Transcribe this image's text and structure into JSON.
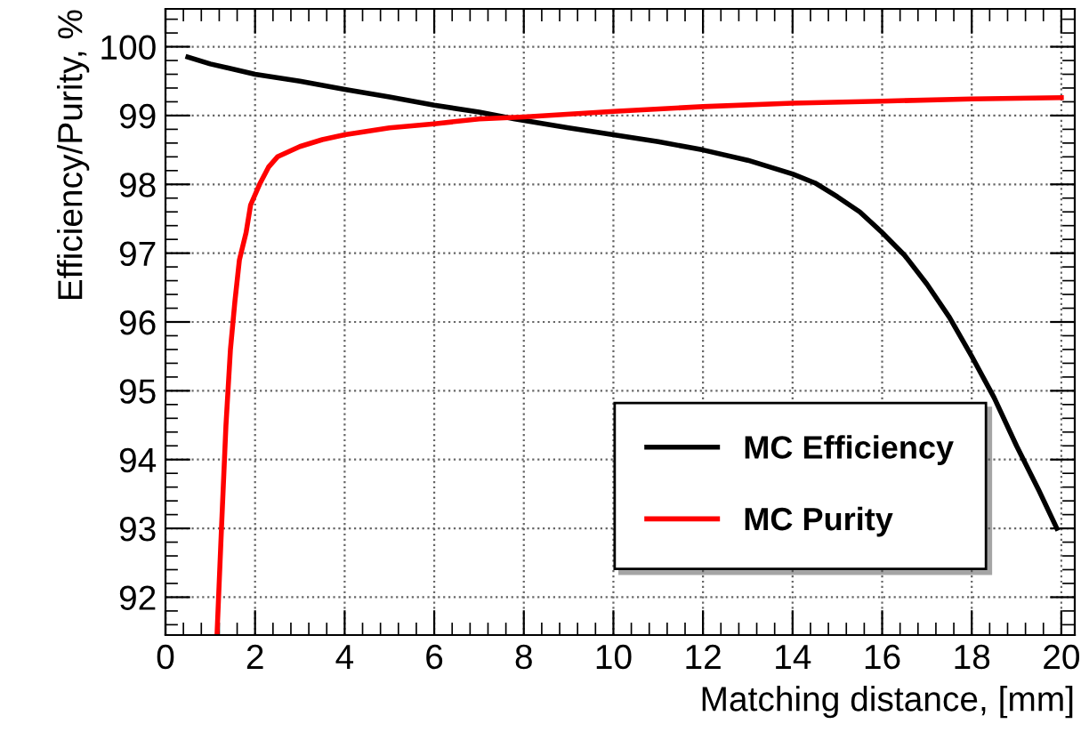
{
  "chart_data": {
    "type": "line",
    "xlabel": "Matching distance, [mm]",
    "ylabel": "Efficiency/Purity, %",
    "xlim": [
      0,
      20.3
    ],
    "ylim": [
      91.45,
      100.55
    ],
    "xticks": [
      0,
      2,
      4,
      6,
      8,
      10,
      12,
      14,
      16,
      18,
      20
    ],
    "yticks": [
      92,
      93,
      94,
      95,
      96,
      97,
      98,
      99,
      100
    ],
    "grid": true,
    "legend": "bottom right",
    "marker": "none",
    "line_style": "solid",
    "series": [
      {
        "name": "MC Efficiency",
        "color": "#000000",
        "x": [
          0.5,
          1,
          2,
          3,
          4,
          5,
          6,
          7,
          7.8,
          9,
          10,
          11,
          12,
          13,
          14,
          14.5,
          15,
          15.5,
          16,
          16.5,
          17,
          17.5,
          18,
          18.5,
          19,
          19.5,
          19.9
        ],
        "values": [
          99.85,
          99.75,
          99.6,
          99.5,
          99.38,
          99.27,
          99.15,
          99.05,
          98.95,
          98.82,
          98.72,
          98.62,
          98.5,
          98.35,
          98.15,
          98.02,
          97.82,
          97.6,
          97.3,
          96.97,
          96.55,
          96.07,
          95.5,
          94.9,
          94.2,
          93.55,
          93.0
        ]
      },
      {
        "name": "MC Purity",
        "color": "#ff0000",
        "x": [
          1.15,
          1.25,
          1.35,
          1.45,
          1.55,
          1.65,
          1.8,
          1.9,
          2.1,
          2.3,
          2.5,
          3,
          3.5,
          4,
          5,
          6,
          7,
          8,
          10,
          12,
          14,
          16,
          18,
          20
        ],
        "values": [
          91.45,
          93.0,
          94.5,
          95.6,
          96.3,
          96.9,
          97.3,
          97.7,
          98.0,
          98.25,
          98.4,
          98.55,
          98.65,
          98.72,
          98.82,
          98.88,
          98.95,
          98.98,
          99.06,
          99.13,
          99.18,
          99.21,
          99.24,
          99.26
        ]
      }
    ]
  }
}
